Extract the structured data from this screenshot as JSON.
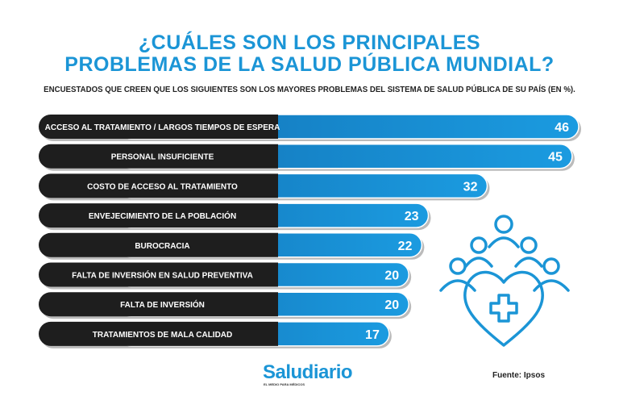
{
  "chart_data": {
    "type": "bar",
    "orientation": "horizontal",
    "title": "¿CUÁLES SON LOS PRINCIPALES PROBLEMAS DE LA SALUD PÚBLICA MUNDIAL?",
    "title_lines": [
      "¿CUÁLES SON LOS PRINCIPALES",
      "PROBLEMAS DE LA SALUD PÚBLICA MUNDIAL?"
    ],
    "subtitle": "ENCUESTADOS QUE CREEN QUE LOS SIGUIENTES SON LOS MAYORES PROBLEMAS DEL SISTEMA DE SALUD PÚBLICA DE SU PAÍS (EN %).",
    "categories": [
      "ACCESO AL TRATAMIENTO / LARGOS TIEMPOS DE ESPERA",
      "PERSONAL INSUFICIENTE",
      "COSTO DE ACCESO AL TRATAMIENTO",
      "ENVEJECIMIENTO DE LA POBLACIÓN",
      "BUROCRACIA",
      "FALTA DE INVERSIÓN EN SALUD PREVENTIVA",
      "FALTA DE INVERSIÓN",
      "TRATAMIENTOS DE MALA CALIDAD"
    ],
    "values": [
      46,
      45,
      32,
      23,
      22,
      20,
      20,
      17
    ],
    "xlim": [
      0,
      46
    ],
    "grid": false,
    "colors": {
      "label_bg": "#1e1e1e",
      "bar": "#1b95d6",
      "bar_dark": "#0a4f86",
      "title": "#1b95d6"
    }
  },
  "footer": {
    "logo": "Saludiario",
    "logo_tagline": "EL MEDIO PARA MÉDICOS",
    "source": "Fuente: Ipsos"
  },
  "icons": [
    "heart-medical-cross-people-icon"
  ]
}
